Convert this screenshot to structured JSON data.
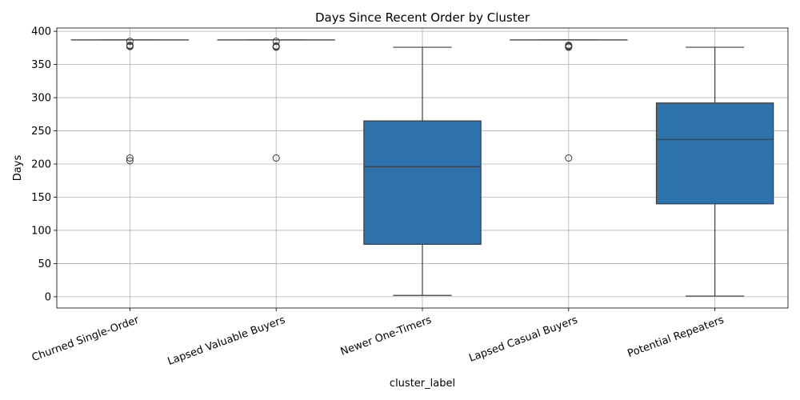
{
  "chart_data": {
    "type": "box",
    "title": "Days Since Recent Order by Cluster",
    "xlabel": "cluster_label",
    "ylabel": "Days",
    "ylim": [
      -17,
      405
    ],
    "yticks": [
      0,
      50,
      100,
      150,
      200,
      250,
      300,
      350,
      400
    ],
    "grid": true,
    "box_color": "#2e72ab",
    "categories": [
      "Churned Single-Order",
      "Lapsed Valuable Buyers",
      "Newer One-Timers",
      "Lapsed Casual Buyers",
      "Potential Repeaters"
    ],
    "boxes": [
      {
        "category": "Churned Single-Order",
        "whislo": 387,
        "q1": 387,
        "med": 387,
        "q3": 387,
        "whishi": 387,
        "fliers": [
          385,
          379,
          378,
          377,
          209,
          205
        ]
      },
      {
        "category": "Lapsed Valuable Buyers",
        "whislo": 387,
        "q1": 387,
        "med": 387,
        "q3": 387,
        "whishi": 387,
        "fliers": [
          385,
          378,
          377,
          376,
          209
        ]
      },
      {
        "category": "Newer One-Timers",
        "whislo": 2,
        "q1": 79,
        "med": 196,
        "q3": 265,
        "whishi": 376,
        "fliers": []
      },
      {
        "category": "Lapsed Casual Buyers",
        "whislo": 387,
        "q1": 387,
        "med": 387,
        "q3": 387,
        "whishi": 387,
        "fliers": [
          379,
          378,
          377,
          376,
          209
        ]
      },
      {
        "category": "Potential Repeaters",
        "whislo": 1,
        "q1": 140,
        "med": 237,
        "q3": 292,
        "whishi": 376,
        "fliers": []
      }
    ]
  }
}
